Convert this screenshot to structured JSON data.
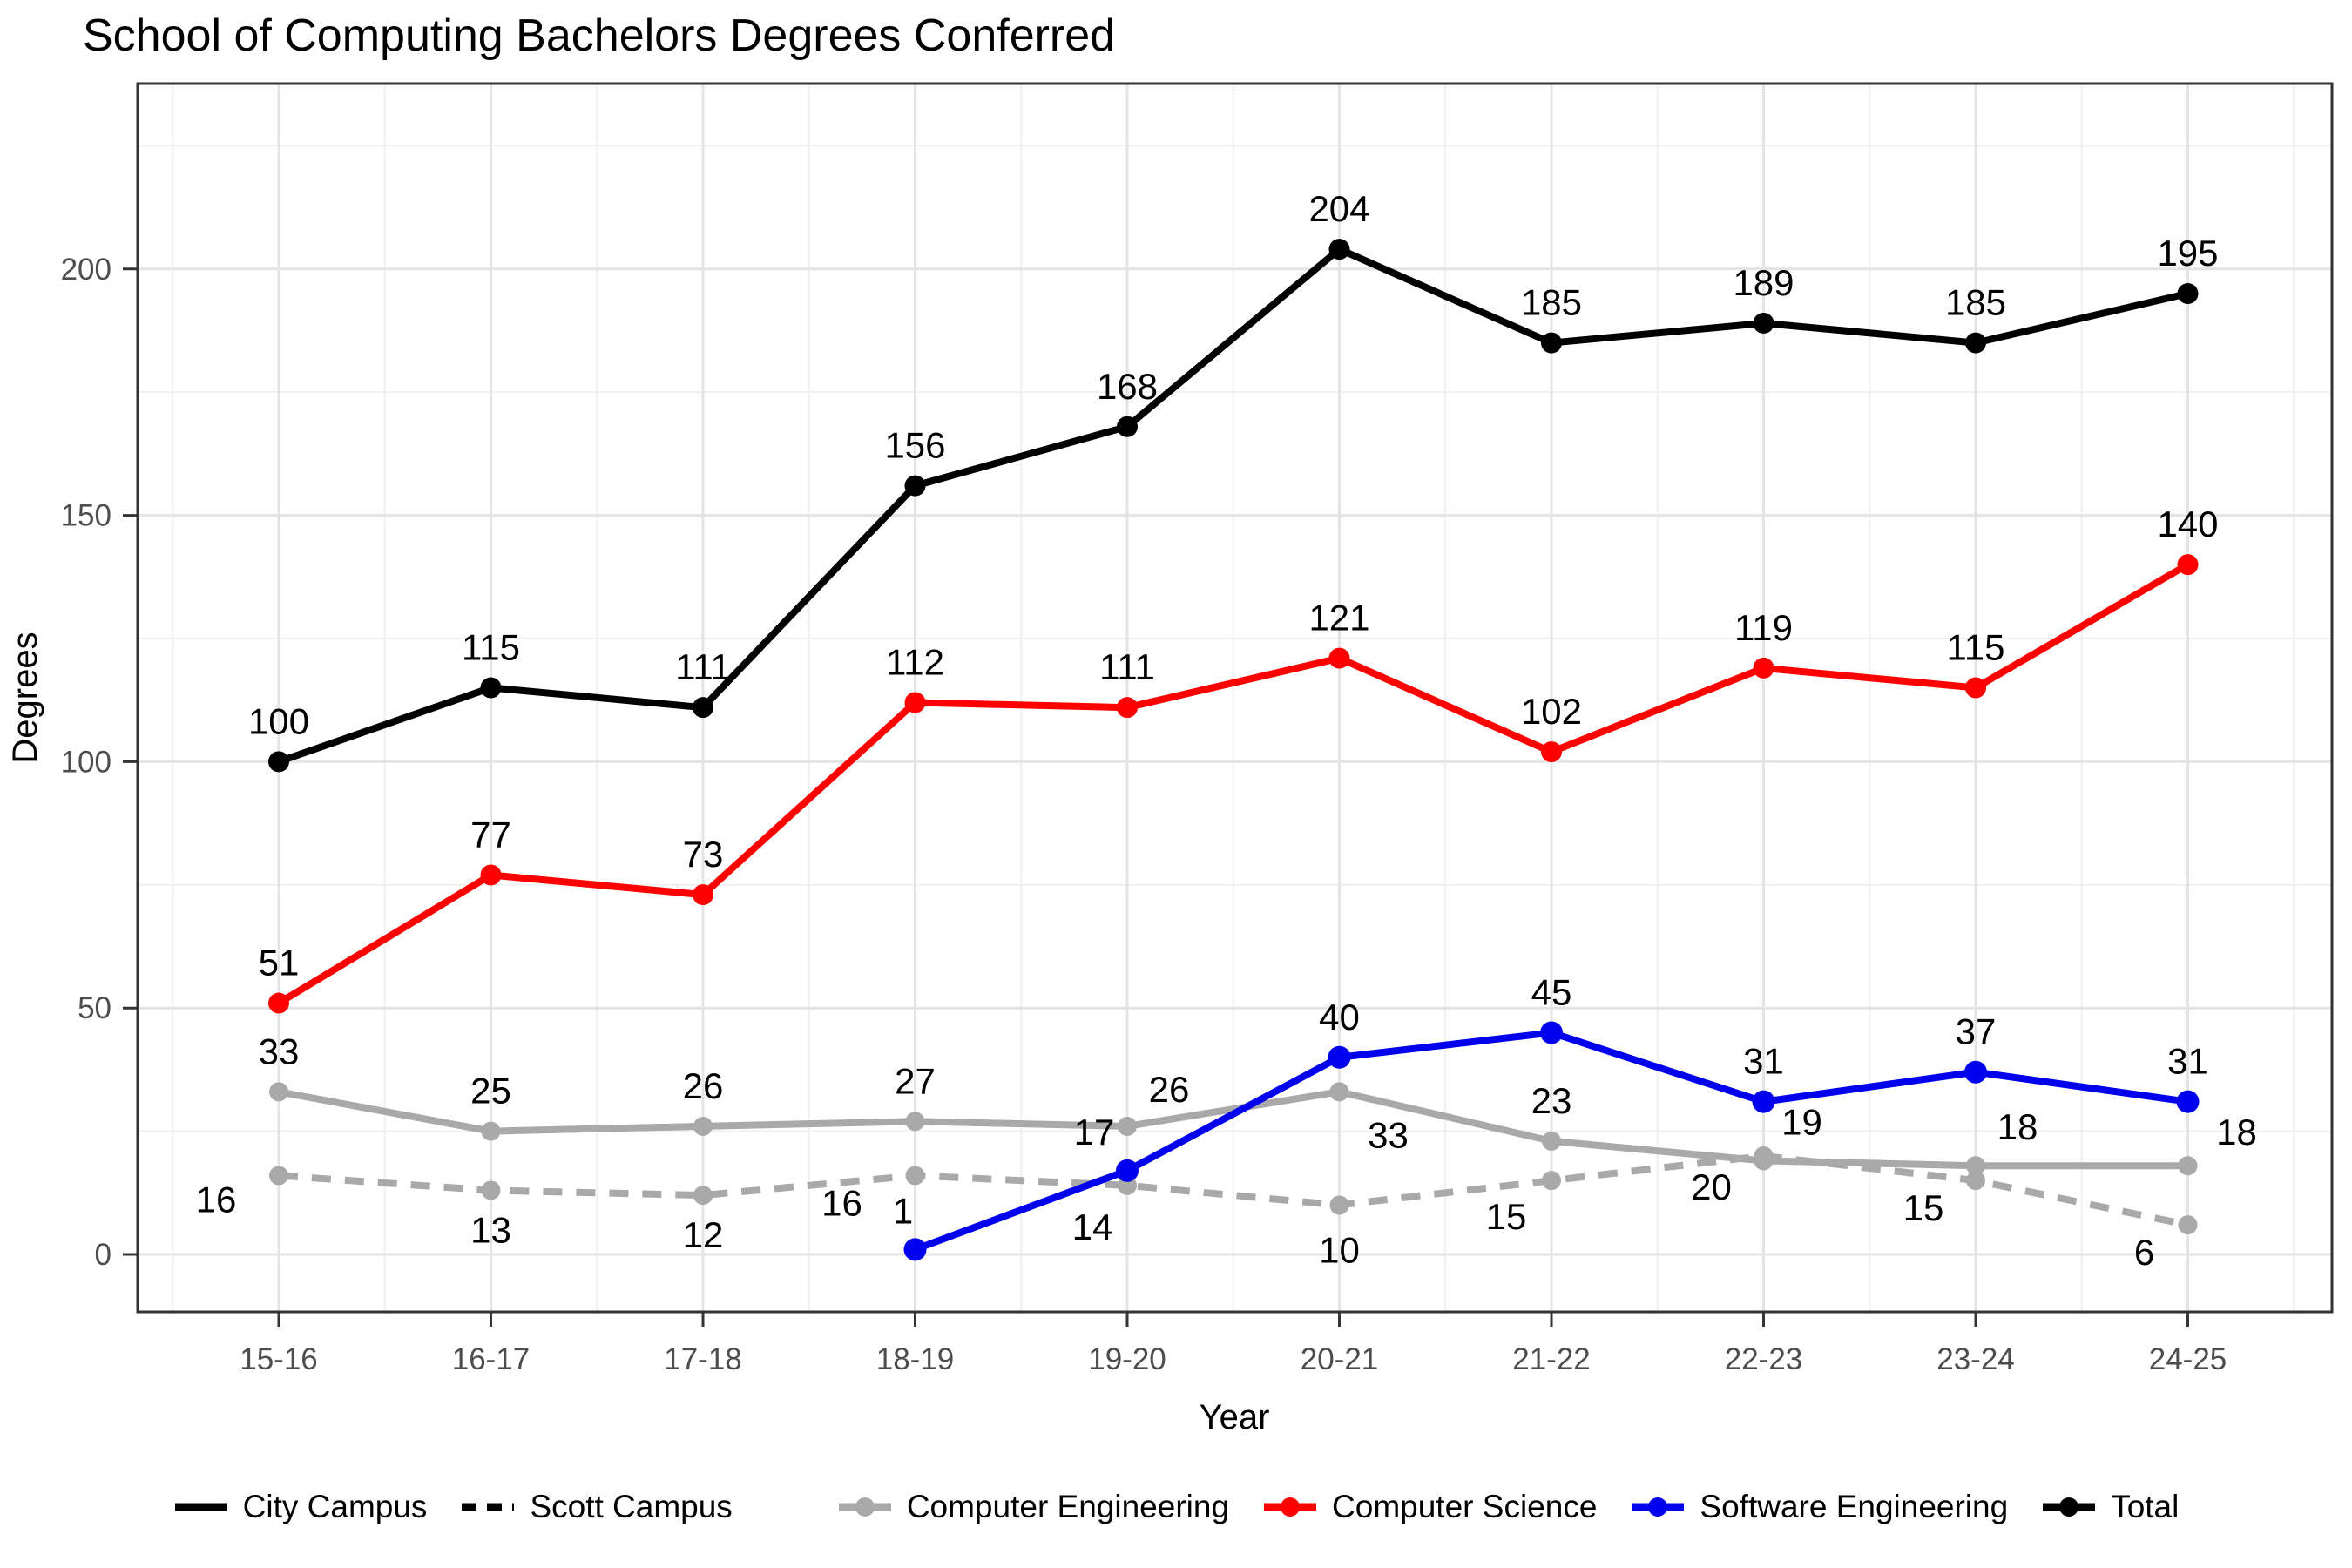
{
  "chart_data": {
    "type": "line",
    "title": "School of Computing Bachelors Degrees Conferred",
    "xlabel": "Year",
    "ylabel": "Degrees",
    "categories": [
      "15-16",
      "16-17",
      "17-18",
      "18-19",
      "19-20",
      "20-21",
      "21-22",
      "22-23",
      "23-24",
      "24-25"
    ],
    "y_ticks": [
      0,
      50,
      100,
      150,
      200
    ],
    "y_minor_ticks": [
      25,
      75,
      125,
      175,
      225
    ],
    "ylim": [
      -12,
      238
    ],
    "grid": "major+minor",
    "legend_position": "bottom",
    "series": [
      {
        "name": "Computer Engineering",
        "campus": "City Campus",
        "color": "#A9A9A9",
        "dash": "solid",
        "values": [
          33,
          25,
          26,
          27,
          26,
          33,
          23,
          19,
          18,
          18
        ]
      },
      {
        "name": "Computer Engineering (Scott Campus)",
        "campus": "Scott Campus",
        "color": "#A9A9A9",
        "dash": "dashed",
        "values": [
          16,
          13,
          12,
          16,
          14,
          10,
          15,
          20,
          15,
          6
        ]
      },
      {
        "name": "Computer Science",
        "campus": "City Campus",
        "color": "#FF0000",
        "dash": "solid",
        "values": [
          51,
          77,
          73,
          112,
          111,
          121,
          102,
          119,
          115,
          140
        ]
      },
      {
        "name": "Software Engineering",
        "campus": "City Campus",
        "color": "#0000EE",
        "dash": "solid",
        "values": [
          null,
          null,
          null,
          1,
          17,
          40,
          45,
          31,
          37,
          31
        ]
      },
      {
        "name": "Total",
        "campus": "City Campus",
        "color": "#000000",
        "dash": "solid",
        "values": [
          100,
          115,
          111,
          156,
          168,
          204,
          185,
          189,
          185,
          195
        ]
      }
    ],
    "legend": {
      "groups": [
        {
          "type": "linetype",
          "items": [
            {
              "label": "City Campus",
              "dash": "solid",
              "color": "#000000"
            },
            {
              "label": "Scott Campus",
              "dash": "dashed",
              "color": "#000000"
            }
          ]
        },
        {
          "type": "color",
          "items": [
            {
              "label": "Computer Engineering",
              "color": "#A9A9A9"
            },
            {
              "label": "Computer Science",
              "color": "#FF0000"
            },
            {
              "label": "Software Engineering",
              "color": "#0000EE"
            },
            {
              "label": "Total",
              "color": "#000000"
            }
          ]
        }
      ]
    }
  }
}
